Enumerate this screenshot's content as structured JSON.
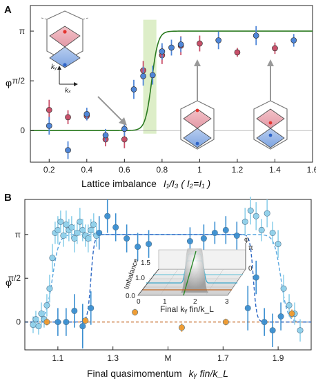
{
  "chart_data": [
    {
      "panel": "A",
      "type": "scatter",
      "xlabel": "Lattice imbalance",
      "xlabel_math": "I₁/I₃ ( I₂=I₁ )",
      "ylabel": "φ",
      "xlim": [
        0.1,
        1.6
      ],
      "ylim": [
        -1.0,
        3.95
      ],
      "xticks": [
        "0.2",
        "0.4",
        "0.6",
        "0.8",
        "1",
        "1.2",
        "1.4",
        "1.6"
      ],
      "yticks": [
        "0",
        "π/2",
        "π"
      ],
      "colors": {
        "red": "#c9506a",
        "blue": "#4f86d8",
        "fit": "#2a7a1f",
        "band": "#cfe7b0"
      },
      "series": [
        {
          "color_key": "red",
          "x": [
            0.2,
            0.3,
            0.4,
            0.5,
            0.6,
            0.7,
            0.8,
            0.9,
            1.0,
            1.2,
            1.4
          ],
          "y": [
            0.65,
            0.42,
            0.46,
            -0.28,
            -0.28,
            1.9,
            2.38,
            2.68,
            2.75,
            2.47,
            2.6
          ],
          "err": [
            0.32,
            0.22,
            0.14,
            0.22,
            0.28,
            0.3,
            0.28,
            0.3,
            0.25,
            0.14,
            0.18
          ]
        },
        {
          "color_key": "blue",
          "x": [
            0.2,
            0.3,
            0.4,
            0.5,
            0.6,
            0.65,
            0.7,
            0.75,
            0.8,
            0.85,
            0.9,
            1.1,
            1.3,
            1.5
          ],
          "y": [
            0.15,
            -0.62,
            0.52,
            -0.15,
            0.05,
            1.3,
            1.72,
            1.75,
            2.5,
            2.62,
            2.72,
            2.85,
            3.0,
            2.85
          ],
          "err": [
            0.28,
            0.28,
            0.2,
            0.2,
            0.22,
            0.3,
            0.3,
            0.3,
            0.26,
            0.25,
            0.24,
            0.28,
            0.3,
            0.2
          ]
        }
      ],
      "fit": {
        "x0": 0.745,
        "width": 0.017,
        "low": 0.0,
        "high": 3.14159,
        "band": [
          0.7,
          0.77
        ]
      },
      "axis_labels_inset": [
        "kᵧ",
        "kₓ"
      ]
    },
    {
      "panel": "B",
      "type": "scatter",
      "xlabel": "Final quasimomentum",
      "xlabel_math": "kᵧ fin/k_L",
      "ylabel": "φ",
      "xlim": [
        0.98,
        2.02
      ],
      "ylim": [
        -1.0,
        4.4
      ],
      "xticks": [
        "1.1",
        "1.3",
        "M",
        "1.7",
        "1.9"
      ],
      "xtick_values": [
        1.1,
        1.3,
        1.5,
        1.7,
        1.9
      ],
      "yticks": [
        "0",
        "π/2",
        "π"
      ],
      "colors": {
        "light": "#8fd0ea",
        "dark": "#3b8fd1",
        "orange": "#ee9a2e",
        "line_orange": "#c0621c",
        "fit_light": "#5aa7e0",
        "fit_dark": "#2b66c4"
      },
      "series": [
        {
          "color_key": "light",
          "x": [
            1.01,
            1.02,
            1.03,
            1.04,
            1.05,
            1.06,
            1.07,
            1.08,
            1.09,
            1.1,
            1.11,
            1.12,
            1.13,
            1.14,
            1.15,
            1.16,
            1.17,
            1.18,
            1.19,
            1.2,
            1.21,
            1.22,
            1.23,
            1.24
          ],
          "y": [
            -0.1,
            0.1,
            -0.15,
            0.3,
            0.1,
            0.6,
            1.2,
            2.3,
            3.2,
            3.3,
            3.6,
            3.1,
            3.5,
            3.3,
            3.4,
            3.0,
            3.2,
            3.6,
            3.3,
            3.1,
            3.0,
            3.3,
            3.5,
            3.1
          ],
          "err": [
            0.3,
            0.3,
            0.3,
            0.4,
            0.3,
            0.4,
            0.5,
            0.5,
            0.4,
            0.5,
            0.4,
            0.4,
            0.5,
            0.4,
            0.4,
            0.5,
            0.4,
            0.5,
            0.4,
            0.4,
            0.5,
            0.4,
            0.4,
            0.4
          ]
        },
        {
          "color_key": "light",
          "x": [
            1.78,
            1.8,
            1.82,
            1.84,
            1.86,
            1.88,
            1.9,
            1.92,
            1.94,
            1.96,
            1.98
          ],
          "y": [
            3.6,
            4.0,
            3.8,
            3.3,
            3.9,
            3.2,
            2.8,
            1.2,
            0.6,
            0.3,
            -0.3
          ],
          "err": [
            0.5,
            0.5,
            0.5,
            0.4,
            0.5,
            0.4,
            0.5,
            0.5,
            0.4,
            0.4,
            0.4
          ]
        },
        {
          "color_key": "dark",
          "x": [
            1.1,
            1.13,
            1.16,
            1.19,
            1.22,
            1.25,
            1.28,
            1.31,
            1.35,
            1.39,
            1.43
          ],
          "y": [
            0.0,
            0.0,
            0.4,
            -0.15,
            0.5,
            3.2,
            3.8,
            3.4,
            3.0,
            2.7,
            2.8
          ],
          "err": [
            0.5,
            0.5,
            0.6,
            0.8,
            0.6,
            0.6,
            0.6,
            0.5,
            0.5,
            0.5,
            0.5
          ]
        },
        {
          "color_key": "dark",
          "x": [
            1.58,
            1.63,
            1.67,
            1.71,
            1.75,
            1.79,
            1.82,
            1.85,
            1.88,
            1.91
          ],
          "y": [
            2.9,
            3.0,
            3.2,
            3.3,
            3.1,
            0.5,
            1.6,
            0.0,
            -0.3,
            0.2
          ],
          "err": [
            0.5,
            0.5,
            0.4,
            0.5,
            0.5,
            0.8,
            0.6,
            0.5,
            0.6,
            0.5
          ]
        },
        {
          "color_key": "orange",
          "x": [
            1.06,
            1.2,
            1.38,
            1.55,
            1.71,
            1.95
          ],
          "y": [
            0.0,
            0.05,
            0.35,
            -0.2,
            0.0,
            0.3
          ],
          "err": [
            0.12,
            0.12,
            0.12,
            0.15,
            0.12,
            0.15
          ]
        }
      ],
      "fits": [
        {
          "color_key": "fit_light",
          "edges": [
            1.08,
            1.91
          ],
          "sharpness": 0.012
        },
        {
          "color_key": "fit_dark",
          "edges": [
            1.22,
            1.81
          ],
          "sharpness": 0.006
        },
        {
          "color_key": "line_orange",
          "level": 0.0
        }
      ]
    }
  ],
  "inset_b": {
    "ylabel": "Imbalance",
    "zlabel": "φ",
    "xlabel": "Final kᵧ fin/k_L",
    "x_ticks": [
      "1",
      "2",
      "3"
    ],
    "y_ticks": [
      "0.0",
      "1.0",
      "1.5"
    ],
    "z_ticks": [
      "π",
      "0"
    ],
    "x_origin": "0"
  }
}
